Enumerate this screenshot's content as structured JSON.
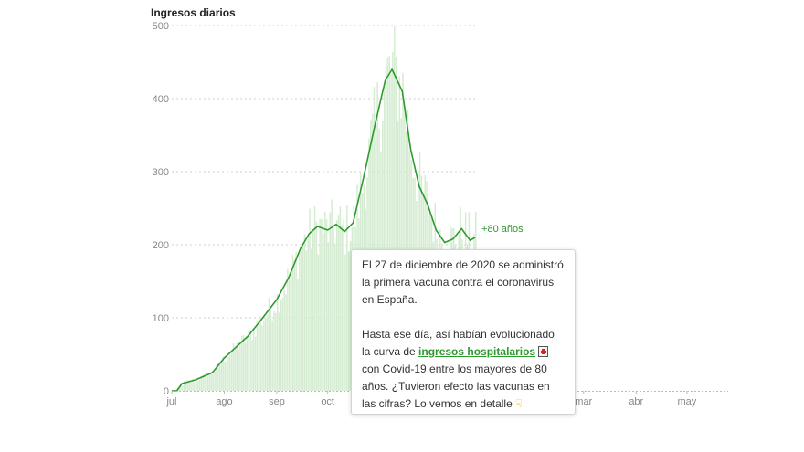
{
  "chart_data": {
    "type": "bar+line",
    "title": "Ingresos diarios",
    "yticks": [
      0,
      100,
      200,
      300,
      400,
      500
    ],
    "ylim": [
      0,
      500
    ],
    "x_start": "2020-07-01",
    "x_end": "2021-05-31",
    "xticks": [
      {
        "label": "jul",
        "date": "2020-07-01"
      },
      {
        "label": "ago",
        "date": "2020-08-01"
      },
      {
        "label": "sep",
        "date": "2020-09-01"
      },
      {
        "label": "oct",
        "date": "2020-10-01"
      },
      {
        "label": "mar",
        "date": "2021-03-01"
      },
      {
        "label": "abr",
        "date": "2021-04-01"
      },
      {
        "label": "may",
        "date": "2021-05-01"
      }
    ],
    "bar_color": "#d5ecd2",
    "line_color": "#2e9a2e",
    "series_label": "+80 años",
    "trend": [
      {
        "date": "2020-07-01",
        "value": 0
      },
      {
        "date": "2020-07-04",
        "value": 0
      },
      {
        "date": "2020-07-07",
        "value": 10
      },
      {
        "date": "2020-07-15",
        "value": 15
      },
      {
        "date": "2020-07-25",
        "value": 25
      },
      {
        "date": "2020-08-01",
        "value": 45
      },
      {
        "date": "2020-08-08",
        "value": 60
      },
      {
        "date": "2020-08-15",
        "value": 75
      },
      {
        "date": "2020-08-22",
        "value": 95
      },
      {
        "date": "2020-09-01",
        "value": 125
      },
      {
        "date": "2020-09-08",
        "value": 155
      },
      {
        "date": "2020-09-15",
        "value": 195
      },
      {
        "date": "2020-09-20",
        "value": 215
      },
      {
        "date": "2020-09-25",
        "value": 225
      },
      {
        "date": "2020-10-01",
        "value": 220
      },
      {
        "date": "2020-10-06",
        "value": 228
      },
      {
        "date": "2020-10-11",
        "value": 218
      },
      {
        "date": "2020-10-16",
        "value": 230
      },
      {
        "date": "2020-10-22",
        "value": 290
      },
      {
        "date": "2020-10-29",
        "value": 365
      },
      {
        "date": "2020-11-04",
        "value": 425
      },
      {
        "date": "2020-11-08",
        "value": 440
      },
      {
        "date": "2020-11-14",
        "value": 410
      },
      {
        "date": "2020-11-19",
        "value": 330
      },
      {
        "date": "2020-11-24",
        "value": 280
      },
      {
        "date": "2020-11-29",
        "value": 255
      },
      {
        "date": "2020-12-04",
        "value": 220
      },
      {
        "date": "2020-12-09",
        "value": 203
      },
      {
        "date": "2020-12-14",
        "value": 208
      },
      {
        "date": "2020-12-19",
        "value": 222
      },
      {
        "date": "2020-12-24",
        "value": 206
      },
      {
        "date": "2020-12-27",
        "value": 210
      }
    ]
  },
  "tooltip": {
    "para1": "El 27 de diciembre de 2020 se administró la primera vacuna contra el coronavirus en España.",
    "para2_before": "Hasta ese día, así habían evolucionado la curva de ",
    "link": "ingresos hospitalarios",
    "para2_after": " con Covid-19 entre los mayores de 80 años. ¿Tuvieron efecto las vacunas en las cifras? Lo vemos en detalle",
    "hospital_icon": "hospital-icon",
    "pointer_icon": "pointing-hand-icon"
  }
}
